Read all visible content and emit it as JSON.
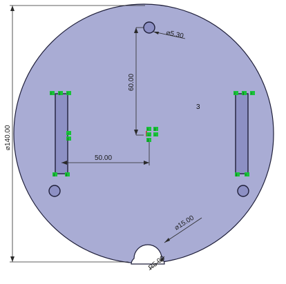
{
  "sketch": {
    "region_label": "3",
    "colors": {
      "plate_fill": "#a9acd4",
      "geometry_line": "#1f1f3a",
      "dimension_line": "#2a2a2a",
      "relation_badge": "#19c23a",
      "relation_text": "#0a3d0a",
      "origin_marker": "#d42020"
    }
  },
  "dimensions": {
    "outer_diameter": "⌀140.00",
    "hole_diameter": "⌀5.30",
    "vertical_offset": "60.00",
    "horizontal_offset": "50.00",
    "notch_diameter": "⌀15.00",
    "notch_radius": "R5.00"
  },
  "relations": {
    "top_left_slot": [
      "ℓ",
      "∥",
      "ℓ"
    ],
    "bottom_left_slot": [
      "∥",
      "∥"
    ],
    "left_slot_side": [
      "=",
      "∥"
    ],
    "top_right_slot": [
      "ℓ",
      "∥",
      "ℓ"
    ],
    "bottom_right_slot": [
      "∥",
      "ℓ"
    ],
    "center_cluster": [
      "ℓ",
      "∥",
      "⊥",
      "=",
      "∥"
    ]
  }
}
